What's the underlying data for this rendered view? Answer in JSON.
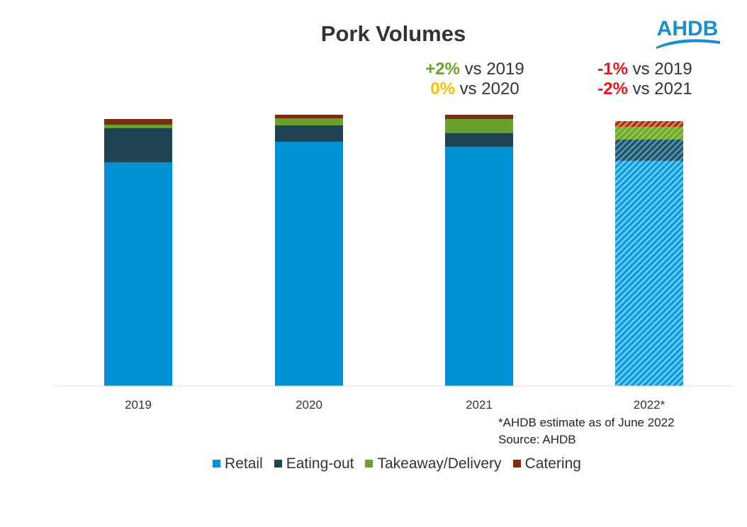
{
  "logo_text": "AHDB",
  "annotations": [
    {
      "pct": "+2%",
      "pct_color": "#6aa12e",
      "text": " vs 2019"
    },
    {
      "pct": "0%",
      "pct_color": "#f5c200",
      "text": " vs 2020"
    },
    {
      "pct": "-1%",
      "pct_color": "#e8141b",
      "text": " vs 2019"
    },
    {
      "pct": "-2%",
      "pct_color": "#e8141b",
      "text": " vs 2021"
    }
  ],
  "note": {
    "line1": "*AHDB estimate as of June 2022",
    "line2": "Source: AHDB"
  },
  "chart_data": {
    "type": "bar",
    "stacked": true,
    "title": "Pork Volumes",
    "categories": [
      "2019",
      "2020",
      "2021",
      "2022*"
    ],
    "estimated_categories": [
      "2022*"
    ],
    "series": [
      {
        "name": "Retail",
        "color": "#0091d5",
        "values": [
          316,
          345,
          338,
          318
        ]
      },
      {
        "name": "Eating-out",
        "color": "#1f4255",
        "values": [
          48,
          23,
          19,
          30
        ]
      },
      {
        "name": "Takeaway/Delivery",
        "color": "#6aa12e",
        "values": [
          5,
          10,
          20,
          18
        ]
      },
      {
        "name": "Catering",
        "color": "#7b2e0e",
        "values": [
          8,
          5,
          6,
          8
        ]
      }
    ],
    "ylim": [
      0,
      400
    ],
    "y_axis_shown": false,
    "grid": false,
    "legend": "bottom"
  }
}
